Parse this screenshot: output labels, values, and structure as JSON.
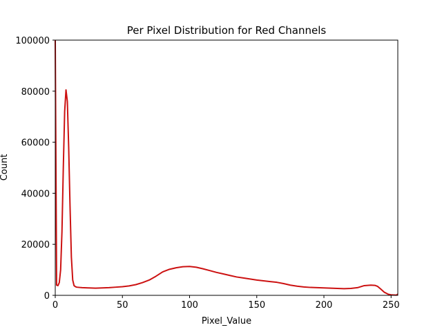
{
  "chart_data": {
    "type": "line",
    "title": "Per Pixel Distribution for Red Channels",
    "xlabel": "Pixel_Value",
    "ylabel": "Count",
    "xlim": [
      0,
      255
    ],
    "ylim": [
      0,
      100000
    ],
    "x_ticks": [
      0,
      50,
      100,
      150,
      200,
      250
    ],
    "y_ticks": [
      0,
      20000,
      40000,
      60000,
      80000,
      100000
    ],
    "grid": false,
    "legend": "none",
    "series": [
      {
        "color": "#cc1111",
        "x": [
          0,
          1,
          2,
          3,
          4,
          5,
          6,
          7,
          8,
          9,
          10,
          11,
          12,
          13,
          14,
          15,
          16,
          18,
          20,
          25,
          30,
          35,
          40,
          45,
          50,
          55,
          60,
          65,
          70,
          75,
          80,
          85,
          90,
          95,
          100,
          105,
          110,
          115,
          120,
          125,
          130,
          135,
          140,
          145,
          150,
          155,
          160,
          165,
          170,
          175,
          180,
          185,
          190,
          195,
          200,
          205,
          210,
          215,
          220,
          225,
          230,
          235,
          238,
          240,
          242,
          245,
          248,
          250,
          252,
          254,
          255
        ],
        "values": [
          100000,
          4000,
          3800,
          5000,
          10000,
          25000,
          50000,
          72000,
          80500,
          76000,
          58000,
          35000,
          15000,
          6000,
          3800,
          3400,
          3200,
          3100,
          3000,
          2900,
          2800,
          2900,
          3000,
          3200,
          3400,
          3700,
          4200,
          5000,
          6000,
          7500,
          9200,
          10200,
          10800,
          11200,
          11300,
          11000,
          10400,
          9700,
          9000,
          8400,
          7800,
          7200,
          6800,
          6400,
          6000,
          5700,
          5400,
          5100,
          4600,
          4000,
          3600,
          3300,
          3100,
          3000,
          2900,
          2800,
          2700,
          2600,
          2700,
          3000,
          3800,
          4000,
          3900,
          3500,
          2600,
          1200,
          400,
          200,
          150,
          100,
          500
        ]
      }
    ]
  }
}
